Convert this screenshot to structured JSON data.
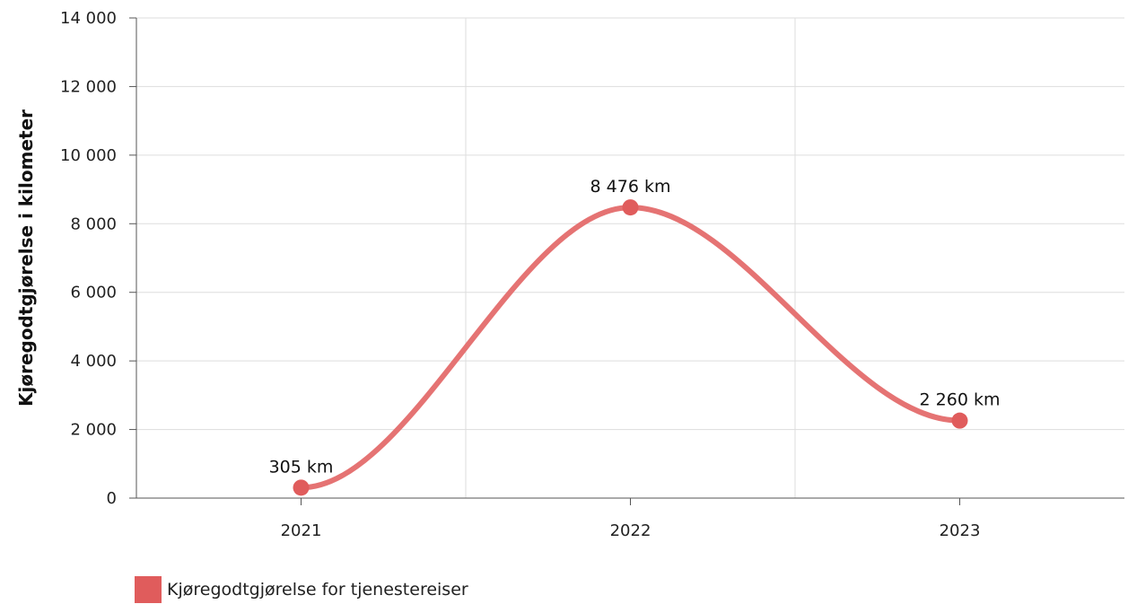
{
  "chart_data": {
    "type": "line",
    "categories": [
      "2021",
      "2022",
      "2023"
    ],
    "series": [
      {
        "name": "Kjøregodtgjørelse for tjenestereiser",
        "values": [
          305,
          8476,
          2260
        ],
        "data_labels": [
          "305 km",
          "8 476 km",
          "2 260 km"
        ],
        "color": "#e05c5c",
        "line_color": "#e57373"
      }
    ],
    "ylabel": "Kjøregodtgjørelse i kilometer",
    "xlabel": "",
    "ylim": [
      0,
      14000
    ],
    "yticks": [
      0,
      2000,
      4000,
      6000,
      8000,
      10000,
      12000,
      14000
    ],
    "ytick_labels": [
      "0",
      "2 000",
      "4 000",
      "6 000",
      "8 000",
      "10 000",
      "12 000",
      "14 000"
    ],
    "grid": true,
    "smooth": true,
    "legend_position": "bottom-left"
  },
  "colors": {
    "grid": "#dddddd",
    "axis": "#555555"
  }
}
